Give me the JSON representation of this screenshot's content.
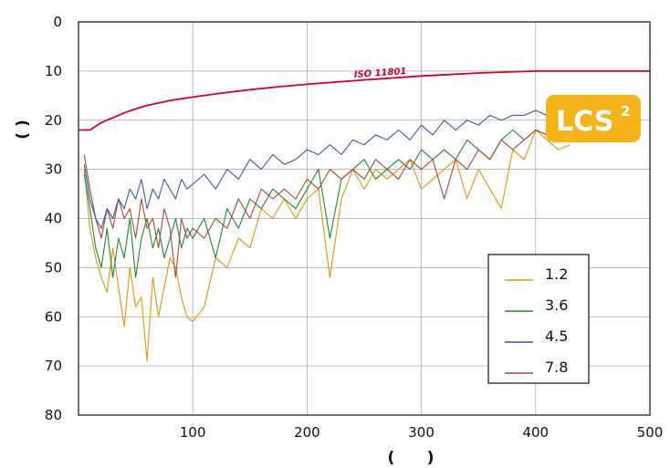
{
  "chart_data": {
    "type": "line",
    "title": "",
    "xlabel": "(      )",
    "ylabel": "(   )",
    "xlim": [
      0,
      500
    ],
    "ylim": [
      0,
      80
    ],
    "y_inverted": true,
    "grid": true,
    "x_ticks": [
      "100",
      "200",
      "300",
      "400",
      "500"
    ],
    "y_ticks": [
      "0",
      "10",
      "20",
      "30",
      "40",
      "50",
      "60",
      "70",
      "80"
    ],
    "legend_position": "bottom-right",
    "series": [
      {
        "name": "1.2",
        "color": "#e8930c",
        "x": [
          5,
          10,
          15,
          20,
          25,
          30,
          35,
          40,
          45,
          50,
          55,
          60,
          65,
          70,
          75,
          80,
          85,
          90,
          95,
          100,
          110,
          120,
          130,
          140,
          150,
          160,
          170,
          180,
          190,
          200,
          210,
          220,
          230,
          240,
          250,
          260,
          270,
          280,
          290,
          300,
          310,
          320,
          330,
          340,
          350,
          360,
          370,
          380,
          390,
          400,
          410,
          420,
          430
        ],
        "values": [
          30,
          42,
          48,
          52,
          55,
          46,
          54,
          62,
          50,
          58,
          56,
          69,
          52,
          60,
          54,
          48,
          50,
          56,
          60,
          61,
          58,
          48,
          50,
          44,
          46,
          38,
          40,
          36,
          40,
          36,
          34,
          52,
          36,
          30,
          34,
          30,
          32,
          30,
          28,
          34,
          32,
          30,
          28,
          36,
          30,
          34,
          38,
          26,
          28,
          22,
          24,
          26,
          25
        ]
      },
      {
        "name": "3.6",
        "color": "#1a8a2e",
        "x": [
          5,
          10,
          15,
          20,
          25,
          30,
          35,
          40,
          45,
          50,
          55,
          60,
          65,
          70,
          75,
          80,
          85,
          90,
          95,
          100,
          110,
          120,
          130,
          140,
          150,
          160,
          170,
          180,
          190,
          200,
          210,
          220,
          230,
          240,
          250,
          260,
          270,
          280,
          290,
          300,
          310,
          320,
          330,
          340,
          350,
          360,
          370,
          380,
          390,
          400,
          410
        ],
        "values": [
          31,
          38,
          46,
          50,
          42,
          52,
          44,
          48,
          40,
          52,
          44,
          40,
          46,
          42,
          48,
          44,
          40,
          46,
          42,
          44,
          40,
          48,
          38,
          42,
          36,
          38,
          34,
          36,
          38,
          34,
          30,
          44,
          32,
          30,
          28,
          32,
          30,
          28,
          30,
          26,
          28,
          26,
          28,
          24,
          26,
          28,
          24,
          22,
          24,
          22,
          23
        ]
      },
      {
        "name": "4.5",
        "color": "#3a57a8",
        "x": [
          5,
          10,
          15,
          20,
          25,
          30,
          35,
          40,
          45,
          50,
          55,
          60,
          65,
          70,
          75,
          80,
          85,
          90,
          95,
          100,
          110,
          120,
          130,
          140,
          150,
          160,
          170,
          180,
          190,
          200,
          210,
          220,
          230,
          240,
          250,
          260,
          270,
          280,
          290,
          300,
          310,
          320,
          330,
          340,
          350,
          360,
          370,
          380,
          390,
          400,
          410
        ],
        "values": [
          29,
          36,
          40,
          42,
          38,
          40,
          36,
          38,
          34,
          36,
          32,
          38,
          34,
          36,
          32,
          34,
          36,
          32,
          34,
          33,
          31,
          34,
          30,
          32,
          28,
          30,
          27,
          29,
          28,
          26,
          27,
          25,
          27,
          24,
          25,
          23,
          24,
          22,
          24,
          21,
          23,
          20,
          22,
          20,
          21,
          19,
          20,
          19,
          19,
          18,
          19
        ]
      },
      {
        "name": "7.8",
        "color": "#a8463a",
        "x": [
          5,
          10,
          15,
          20,
          25,
          30,
          35,
          40,
          45,
          50,
          55,
          60,
          65,
          70,
          75,
          80,
          85,
          90,
          95,
          100,
          110,
          120,
          130,
          140,
          150,
          160,
          170,
          180,
          190,
          200,
          210,
          220,
          230,
          240,
          250,
          260,
          270,
          280,
          290,
          300,
          310,
          320,
          330,
          340,
          350,
          360,
          370,
          380,
          390,
          400,
          410
        ],
        "values": [
          27,
          34,
          40,
          44,
          38,
          42,
          36,
          40,
          38,
          44,
          36,
          42,
          40,
          46,
          38,
          42,
          52,
          40,
          44,
          42,
          44,
          40,
          42,
          36,
          40,
          34,
          36,
          34,
          36,
          32,
          34,
          30,
          32,
          30,
          32,
          28,
          30,
          32,
          28,
          30,
          28,
          36,
          28,
          30,
          26,
          28,
          24,
          26,
          24,
          22,
          23
        ]
      },
      {
        "name": "ISO 11801",
        "color": "#d4002a",
        "x": [
          0,
          10,
          20,
          30,
          40,
          50,
          60,
          80,
          100,
          125,
          150,
          175,
          200,
          250,
          300,
          350,
          400,
          450,
          500
        ],
        "values": [
          22,
          22,
          20.5,
          19.5,
          18.5,
          17.7,
          17,
          16,
          15.3,
          14.5,
          13.8,
          13.2,
          12.7,
          11.8,
          11,
          10.4,
          10,
          10,
          10
        ]
      }
    ],
    "annotations": [
      "ISO 11801",
      "LCS",
      "2"
    ]
  }
}
